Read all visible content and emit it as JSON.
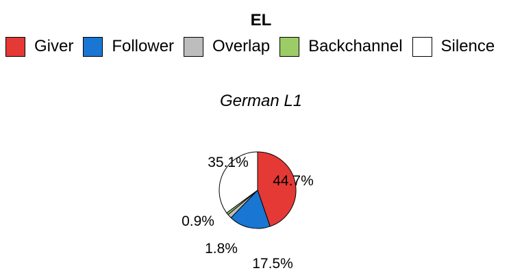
{
  "chart_data": {
    "type": "pie",
    "legend_title": "EL",
    "legend_position": "top",
    "panel_title": "German L1",
    "slices": [
      {
        "name": "Giver",
        "value": 44.7,
        "label": "44.7%",
        "color": "#e53935"
      },
      {
        "name": "Follower",
        "value": 17.5,
        "label": "17.5%",
        "color": "#1976d2"
      },
      {
        "name": "Overlap",
        "value": 1.8,
        "label": "1.8%",
        "color": "#bdbdbd"
      },
      {
        "name": "Backchannel",
        "value": 0.9,
        "label": "0.9%",
        "color": "#9ccc65"
      },
      {
        "name": "Silence",
        "value": 35.1,
        "label": "35.1%",
        "color": "#ffffff"
      }
    ]
  }
}
